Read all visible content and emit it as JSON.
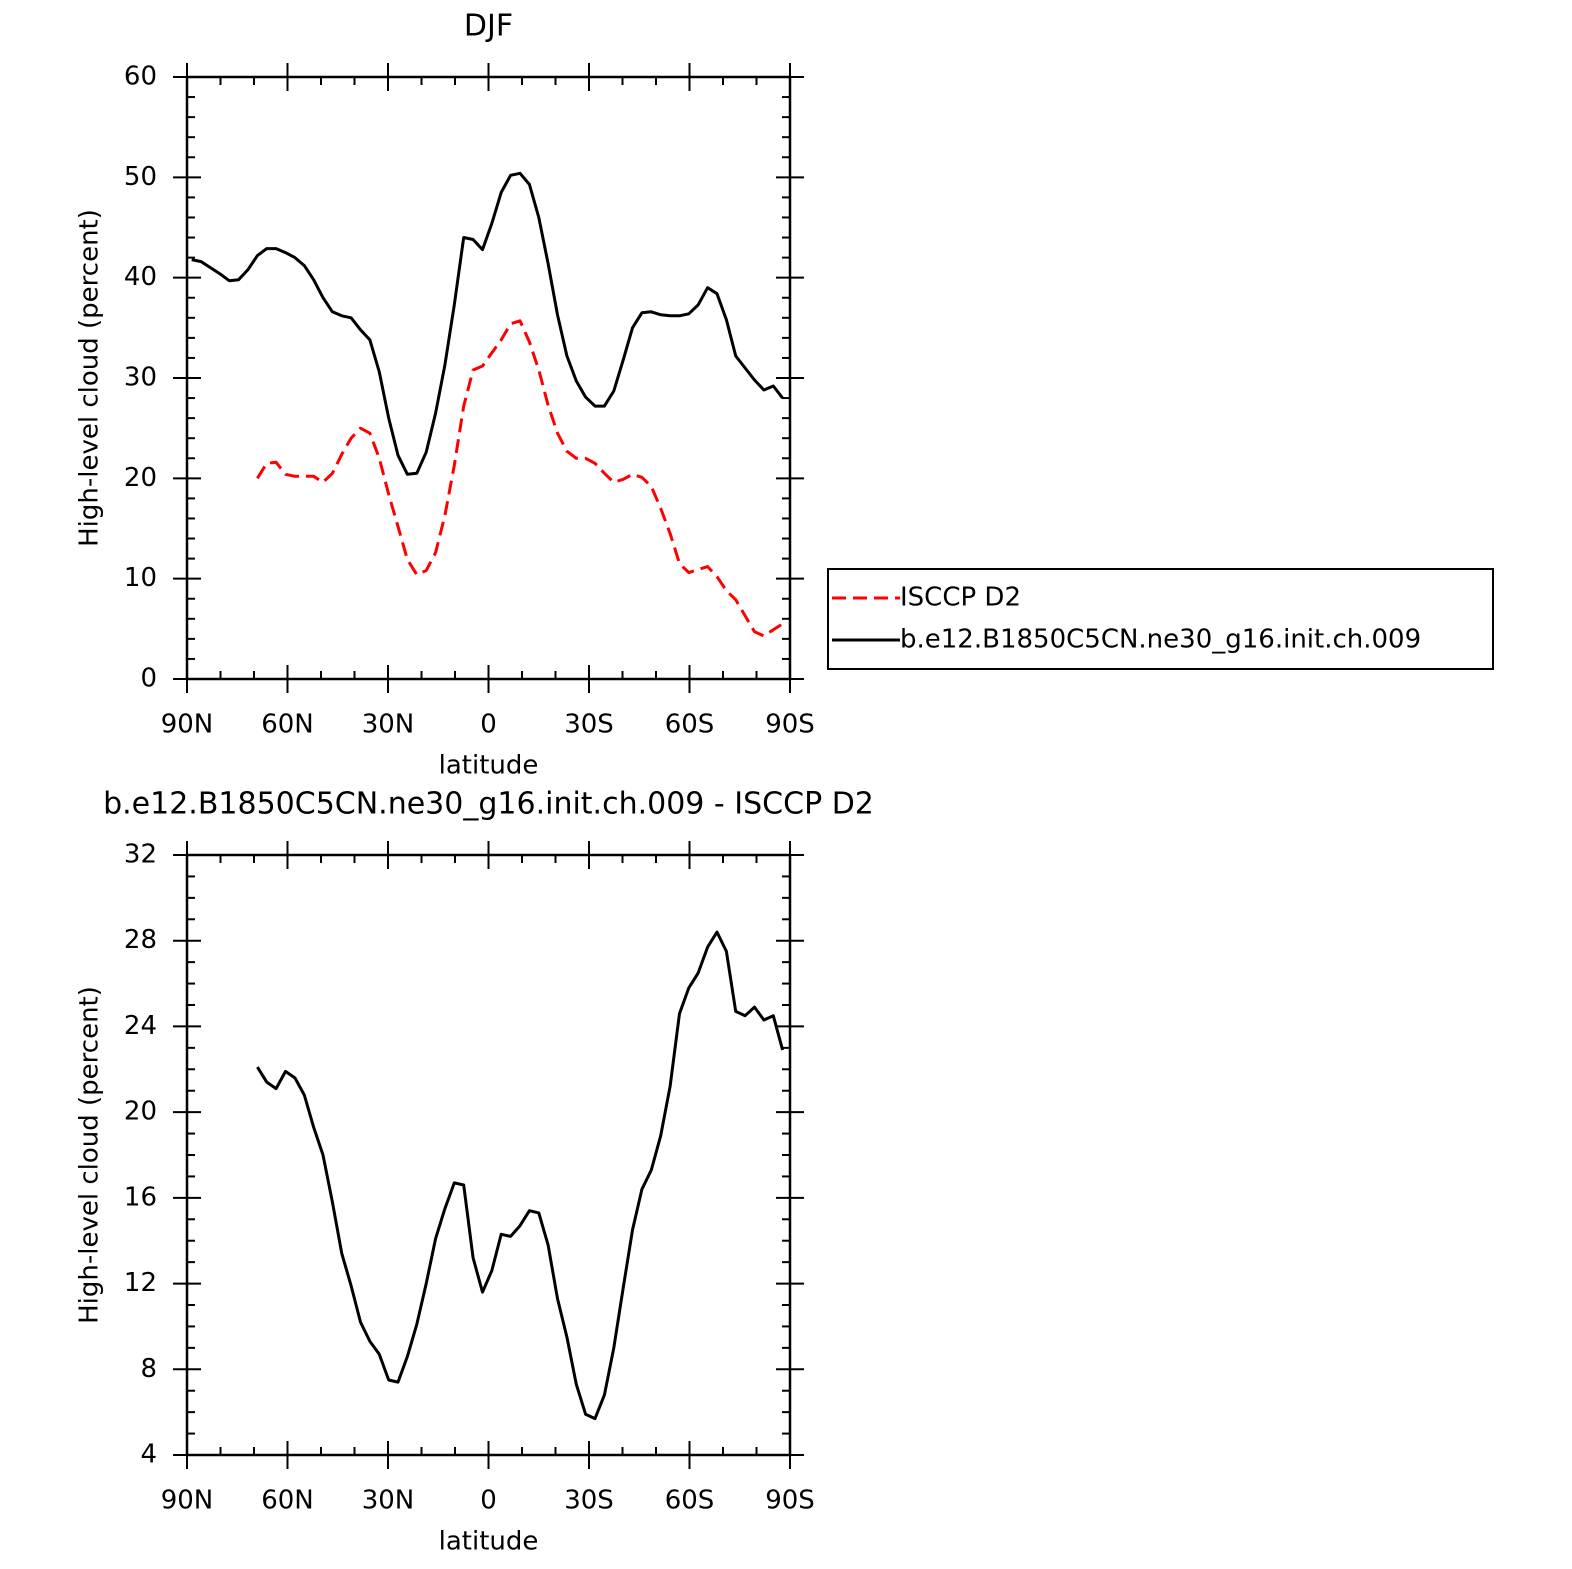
{
  "chart_data": [
    {
      "type": "line",
      "title": "DJF",
      "x_label": "latitude",
      "y_label": "High-level cloud (percent)",
      "x": [
        88.6,
        85.8,
        83,
        80.2,
        77.4,
        74.6,
        71.8,
        69,
        66.2,
        63.4,
        60.6,
        57.8,
        55,
        52.2,
        49.4,
        46.6,
        43.8,
        41,
        38.2,
        35.4,
        32.6,
        29.8,
        27,
        24.2,
        21.4,
        18.6,
        15.8,
        13,
        10.2,
        7.4,
        4.6,
        1.8,
        -1,
        -3.8,
        -6.6,
        -9.4,
        -12.2,
        -15,
        -17.8,
        -20.6,
        -23.4,
        -26.2,
        -29,
        -31.8,
        -34.6,
        -37.4,
        -40.2,
        -43,
        -45.8,
        -48.6,
        -51.4,
        -54.2,
        -57,
        -59.8,
        -62.6,
        -65.4,
        -68.2,
        -71,
        -73.8,
        -76.6,
        -79.4,
        -82.2,
        -85,
        -87.8
      ],
      "series": [
        {
          "name": "ISCCP D2",
          "color": "#ff0000",
          "dash": true,
          "values": [
            null,
            null,
            null,
            null,
            null,
            null,
            null,
            20.0,
            21.5,
            21.6,
            20.4,
            20.2,
            20.2,
            20.2,
            19.6,
            20.5,
            22.4,
            24.0,
            25.0,
            24.5,
            22.0,
            18.4,
            15.2,
            11.9,
            10.4,
            10.8,
            12.6,
            16.3,
            21.3,
            27.2,
            30.8,
            31.2,
            32.5,
            33.8,
            35.4,
            35.7,
            33.6,
            30.8,
            27.3,
            24.5,
            22.7,
            22.0,
            22.0,
            21.5,
            20.5,
            19.6,
            19.9,
            20.4,
            20.1,
            19.2,
            17.0,
            14.5,
            11.5,
            10.6,
            10.9,
            11.2,
            10.2,
            8.8,
            7.9,
            6.3,
            4.7,
            4.3,
            4.9,
            5.5
          ]
        },
        {
          "name": "b.e12.B1850C5CN.ne30_g16.init.ch.009",
          "color": "#000000",
          "dash": false,
          "values": [
            41.8,
            41.6,
            41.0,
            40.4,
            39.7,
            39.8,
            40.8,
            42.2,
            42.9,
            42.9,
            42.5,
            42.0,
            41.2,
            39.8,
            38.0,
            36.6,
            36.2,
            36.0,
            34.8,
            33.8,
            30.6,
            26.0,
            22.3,
            20.4,
            20.5,
            22.6,
            26.5,
            31.3,
            37.3,
            44.0,
            43.8,
            42.8,
            45.4,
            48.5,
            50.2,
            50.4,
            49.3,
            46.0,
            41.4,
            36.3,
            32.2,
            29.7,
            28.1,
            27.2,
            27.2,
            28.7,
            31.8,
            35.0,
            36.5,
            36.6,
            36.3,
            36.2,
            36.2,
            36.4,
            37.3,
            39.0,
            38.4,
            35.8,
            32.2,
            31.0,
            29.8,
            28.8,
            29.2,
            28.0
          ]
        }
      ],
      "xlim": [
        90,
        -90
      ],
      "xticks": [
        {
          "value": 90,
          "label": "90N"
        },
        {
          "value": 60,
          "label": "60N"
        },
        {
          "value": 30,
          "label": "30N"
        },
        0,
        {
          "value": -30,
          "label": "30S"
        },
        {
          "value": -60,
          "label": "60S"
        },
        {
          "value": -90,
          "label": "90S"
        }
      ],
      "ylim": [
        0,
        60
      ],
      "yticks": [
        0,
        10,
        20,
        30,
        40,
        50,
        60
      ],
      "legend": "right"
    },
    {
      "type": "line",
      "title": "b.e12.B1850C5CN.ne30_g16.init.ch.009 - ISCCP D2",
      "x_label": "latitude",
      "y_label": "High-level cloud (percent)",
      "x": [
        88.6,
        85.8,
        83,
        80.2,
        77.4,
        74.6,
        71.8,
        69,
        66.2,
        63.4,
        60.6,
        57.8,
        55,
        52.2,
        49.4,
        46.6,
        43.8,
        41,
        38.2,
        35.4,
        32.6,
        29.8,
        27,
        24.2,
        21.4,
        18.6,
        15.8,
        13,
        10.2,
        7.4,
        4.6,
        1.8,
        -1,
        -3.8,
        -6.6,
        -9.4,
        -12.2,
        -15,
        -17.8,
        -20.6,
        -23.4,
        -26.2,
        -29,
        -31.8,
        -34.6,
        -37.4,
        -40.2,
        -43,
        -45.8,
        -48.6,
        -51.4,
        -54.2,
        -57,
        -59.8,
        -62.6,
        -65.4,
        -68.2,
        -71,
        -73.8,
        -76.6,
        -79.4,
        -82.2,
        -85,
        -87.8
      ],
      "series": [
        {
          "color": "#000000",
          "dash": false,
          "values": [
            null,
            null,
            null,
            null,
            null,
            null,
            null,
            22.1,
            21.4,
            21.1,
            21.9,
            21.6,
            20.8,
            19.3,
            18.0,
            15.8,
            13.4,
            11.9,
            10.2,
            9.3,
            8.7,
            7.5,
            7.4,
            8.6,
            10.1,
            12.0,
            14.1,
            15.5,
            16.7,
            16.6,
            13.2,
            11.6,
            12.6,
            14.3,
            14.2,
            14.7,
            15.4,
            15.3,
            13.8,
            11.3,
            9.5,
            7.3,
            5.9,
            5.7,
            6.8,
            9.0,
            11.8,
            14.5,
            16.4,
            17.3,
            18.9,
            21.2,
            24.6,
            25.8,
            26.5,
            27.7,
            28.4,
            27.5,
            24.7,
            24.5,
            24.9,
            24.3,
            24.5,
            22.9
          ]
        }
      ],
      "xlim": [
        90,
        -90
      ],
      "xticks": [
        {
          "value": 90,
          "label": "90N"
        },
        {
          "value": 60,
          "label": "60N"
        },
        {
          "value": 30,
          "label": "30N"
        },
        0,
        {
          "value": -30,
          "label": "30S"
        },
        {
          "value": -60,
          "label": "60S"
        },
        {
          "value": -90,
          "label": "90S"
        }
      ],
      "ylim": [
        4,
        32
      ],
      "yticks": [
        4,
        8,
        12,
        16,
        20,
        24,
        28,
        32
      ]
    }
  ]
}
